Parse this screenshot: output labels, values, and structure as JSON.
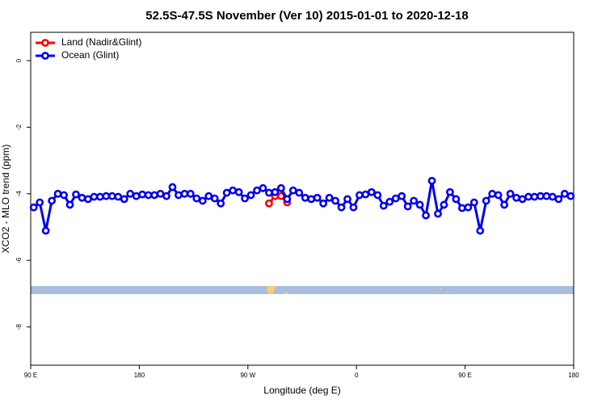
{
  "chart_data": {
    "type": "line",
    "title": "52.5S-47.5S November (Ver 10)   2015-01-01 to 2020-12-18",
    "xlabel": "Longitude (deg E)",
    "ylabel": "XCO2 - MLO trend (ppm)",
    "legend": "upper left",
    "xlim": [
      90,
      540
    ],
    "ylim": [
      -9.15,
      0.85
    ],
    "xticks": [
      {
        "value": 90,
        "label": "90 E"
      },
      180,
      {
        "value": 270,
        "label": "90 W"
      },
      {
        "value": 360,
        "label": "0"
      },
      {
        "value": 450,
        "label": "90 E"
      },
      {
        "value": 540,
        "label": "180"
      }
    ],
    "yticks": [
      0,
      -2,
      -4,
      -6,
      -8
    ],
    "series": [
      {
        "name": "Land (Nadir&Glint)",
        "color": "#ff0000",
        "x": [
          287.5,
          292.5,
          297.5,
          302.5
        ],
        "values": [
          -4.29,
          -4.07,
          -4.07,
          -4.26
        ]
      },
      {
        "name": "Ocean (Glint)",
        "color": "#0000ee",
        "x": [
          92.5,
          97.5,
          102.5,
          107.5,
          112.5,
          117.5,
          122.5,
          127.5,
          132.5,
          137.5,
          142.5,
          147.5,
          152.5,
          157.5,
          162.5,
          167.5,
          172.5,
          177.5,
          182.5,
          187.5,
          192.5,
          197.5,
          202.5,
          207.5,
          212.5,
          217.5,
          222.5,
          227.5,
          232.5,
          237.5,
          242.5,
          247.5,
          252.5,
          257.5,
          262.5,
          267.5,
          272.5,
          277.5,
          282.5,
          287.5,
          292.5,
          297.5,
          302.5,
          307.5,
          312.5,
          317.5,
          322.5,
          327.5,
          332.5,
          337.5,
          342.5,
          347.5,
          352.5,
          357.5,
          362.5,
          367.5,
          372.5,
          377.5,
          382.5,
          387.5,
          392.5,
          397.5,
          402.5,
          407.5,
          412.5,
          417.5,
          422.5,
          427.5,
          432.5,
          437.5,
          442.5,
          447.5,
          452.5,
          457.5,
          462.5,
          467.5,
          472.5,
          477.5,
          482.5,
          487.5,
          492.5,
          497.5,
          502.5,
          507.5,
          512.5,
          517.5,
          522.5,
          527.5,
          532.5,
          537.5
        ],
        "values": [
          -4.41,
          -4.26,
          -5.11,
          -4.21,
          -4.0,
          -4.04,
          -4.33,
          -4.02,
          -4.12,
          -4.16,
          -4.09,
          -4.09,
          -4.07,
          -4.07,
          -4.09,
          -4.16,
          -4.0,
          -4.07,
          -4.02,
          -4.04,
          -4.04,
          -4.0,
          -4.07,
          -3.8,
          -4.04,
          -4.0,
          -4.0,
          -4.14,
          -4.21,
          -4.07,
          -4.14,
          -4.29,
          -3.97,
          -3.9,
          -3.95,
          -4.14,
          -4.04,
          -3.9,
          -3.83,
          -3.97,
          -3.95,
          -3.83,
          -4.16,
          -3.9,
          -3.97,
          -4.12,
          -4.16,
          -4.12,
          -4.29,
          -4.12,
          -4.21,
          -4.41,
          -4.16,
          -4.41,
          -4.04,
          -4.02,
          -3.95,
          -4.04,
          -4.36,
          -4.24,
          -4.14,
          -4.07,
          -4.38,
          -4.21,
          -4.33,
          -4.65,
          -3.61,
          -4.6,
          -4.33,
          -3.95,
          -4.16,
          -4.43,
          -4.41,
          -4.26,
          -5.11,
          -4.21,
          -4.0,
          -4.04,
          -4.33,
          -4.0,
          -4.12,
          -4.16,
          -4.09,
          -4.09,
          -4.07,
          -4.07,
          -4.09,
          -4.16,
          -4.0,
          -4.07
        ]
      }
    ]
  }
}
